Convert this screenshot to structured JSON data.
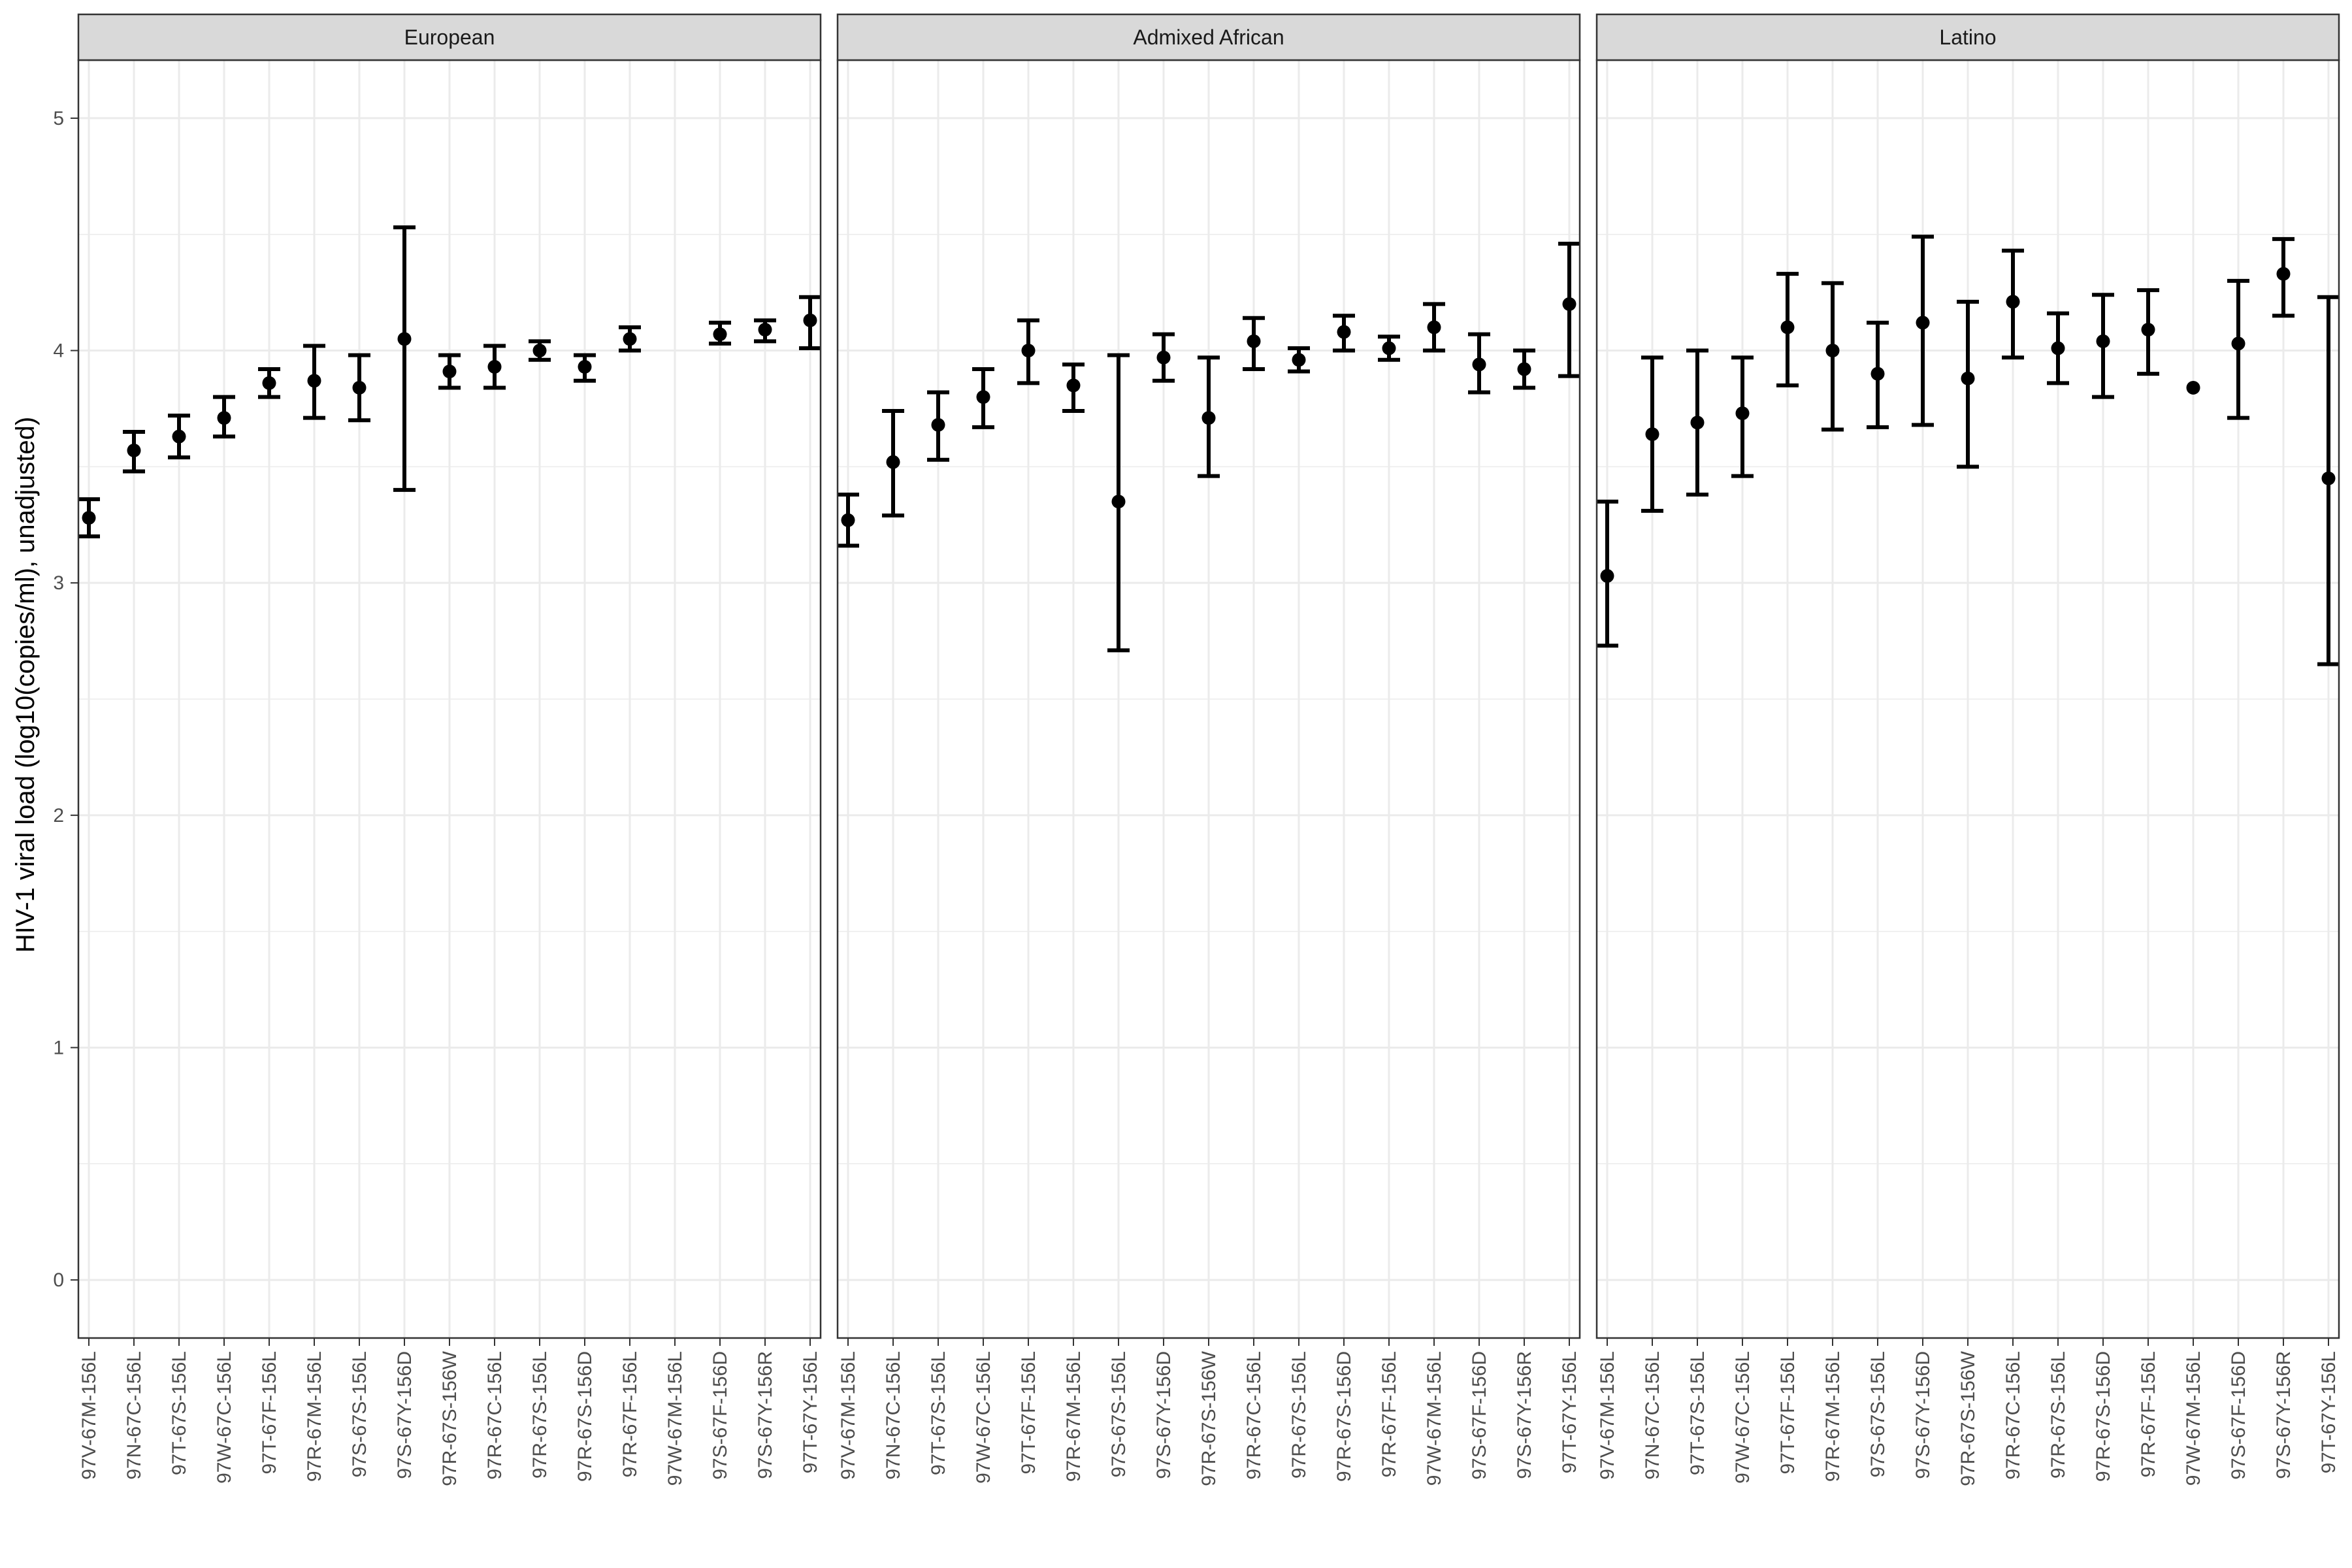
{
  "chart_data": {
    "type": "scatter",
    "ylabel": "HIV-1 viral load (log10(copies/ml), unadjusted)",
    "xlabel": "",
    "ylim": [
      -0.25,
      5.25
    ],
    "yticks": [
      0,
      1,
      2,
      3,
      4,
      5
    ],
    "grid": true,
    "error_bars": true,
    "colors": {
      "point": "#000000",
      "grid": "#ebebeb",
      "strip": "#d9d9d9",
      "border": "#333333"
    },
    "panels": [
      {
        "name": "European",
        "categories": [
          "97V-67M-156L",
          "97N-67C-156L",
          "97T-67S-156L",
          "97W-67C-156L",
          "97T-67F-156L",
          "97R-67M-156L",
          "97S-67S-156L",
          "97S-67Y-156D",
          "97R-67S-156W",
          "97R-67C-156L",
          "97R-67S-156L",
          "97R-67S-156D",
          "97R-67F-156L",
          "97W-67M-156L",
          "97S-67F-156D",
          "97S-67Y-156R",
          "97T-67Y-156L"
        ],
        "values": [
          3.28,
          3.57,
          3.63,
          3.71,
          3.86,
          3.87,
          3.84,
          4.05,
          3.91,
          3.93,
          4.0,
          3.93,
          4.05,
          null,
          4.07,
          4.09,
          4.13
        ],
        "lower": [
          3.2,
          3.48,
          3.54,
          3.63,
          3.8,
          3.71,
          3.7,
          3.4,
          3.84,
          3.84,
          3.96,
          3.87,
          4.0,
          null,
          4.03,
          4.04,
          4.01
        ],
        "upper": [
          3.36,
          3.65,
          3.72,
          3.8,
          3.92,
          4.02,
          3.98,
          4.53,
          3.98,
          4.02,
          4.04,
          3.98,
          4.1,
          null,
          4.12,
          4.13,
          4.23
        ]
      },
      {
        "name": "Admixed African",
        "categories": [
          "97V-67M-156L",
          "97N-67C-156L",
          "97T-67S-156L",
          "97W-67C-156L",
          "97T-67F-156L",
          "97R-67M-156L",
          "97S-67S-156L",
          "97S-67Y-156D",
          "97R-67S-156W",
          "97R-67C-156L",
          "97R-67S-156L",
          "97R-67S-156D",
          "97R-67F-156L",
          "97W-67M-156L",
          "97S-67F-156D",
          "97S-67Y-156R",
          "97T-67Y-156L"
        ],
        "values": [
          3.27,
          3.52,
          3.68,
          3.8,
          4.0,
          3.85,
          3.35,
          3.97,
          3.71,
          4.04,
          3.96,
          4.08,
          4.01,
          4.1,
          3.94,
          3.92,
          4.2
        ],
        "lower": [
          3.16,
          3.29,
          3.53,
          3.67,
          3.86,
          3.74,
          2.71,
          3.87,
          3.46,
          3.92,
          3.91,
          4.0,
          3.96,
          4.0,
          3.82,
          3.84,
          3.89
        ],
        "upper": [
          3.38,
          3.74,
          3.82,
          3.92,
          4.13,
          3.94,
          3.98,
          4.07,
          3.97,
          4.14,
          4.01,
          4.15,
          4.06,
          4.2,
          4.07,
          4.0,
          4.46
        ]
      },
      {
        "name": "Latino",
        "categories": [
          "97V-67M-156L",
          "97N-67C-156L",
          "97T-67S-156L",
          "97W-67C-156L",
          "97T-67F-156L",
          "97R-67M-156L",
          "97S-67S-156L",
          "97S-67Y-156D",
          "97R-67S-156W",
          "97R-67C-156L",
          "97R-67S-156L",
          "97R-67S-156D",
          "97R-67F-156L",
          "97W-67M-156L",
          "97S-67F-156D",
          "97S-67Y-156R",
          "97T-67Y-156L"
        ],
        "values": [
          3.03,
          3.64,
          3.69,
          3.73,
          4.1,
          4.0,
          3.9,
          4.12,
          3.88,
          4.21,
          4.01,
          4.04,
          4.09,
          3.84,
          4.03,
          4.33,
          3.45
        ],
        "lower": [
          2.73,
          3.31,
          3.38,
          3.46,
          3.85,
          3.66,
          3.67,
          3.68,
          3.5,
          3.97,
          3.86,
          3.8,
          3.9,
          3.84,
          3.71,
          4.15,
          2.65
        ],
        "upper": [
          3.35,
          3.97,
          4.0,
          3.97,
          4.33,
          4.29,
          4.12,
          4.49,
          4.21,
          4.43,
          4.16,
          4.24,
          4.26,
          3.84,
          4.3,
          4.48,
          4.23
        ]
      }
    ]
  }
}
